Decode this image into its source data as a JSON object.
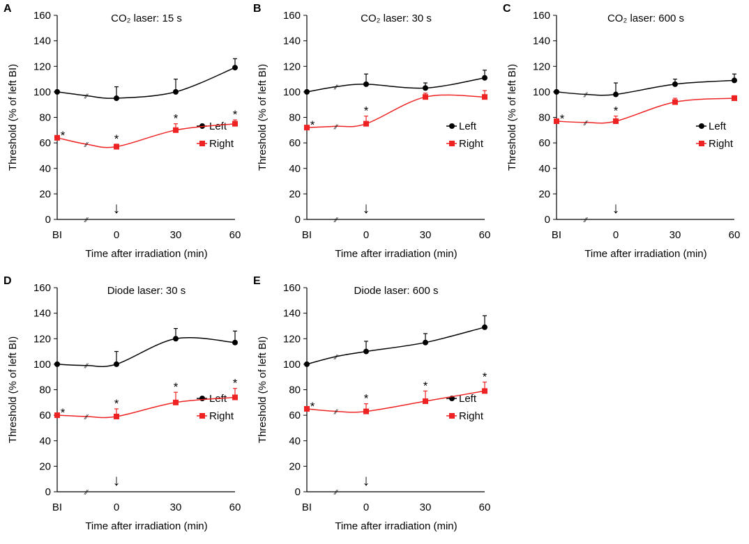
{
  "chart_data": [
    {
      "type": "line",
      "panel_label": "A",
      "title": "CO₂ laser: 15 s",
      "xlabel": "Time after irradiation (min)",
      "ylabel": "Threshold (% of left BI)",
      "categories": [
        "BI",
        "",
        "0",
        "30",
        "60"
      ],
      "ylim": [
        0,
        160
      ],
      "yticks": [
        0,
        20,
        40,
        60,
        80,
        100,
        120,
        140,
        160
      ],
      "arrow_label": "↓",
      "break_mark": "∕∕",
      "significance_symbol": "*",
      "series": [
        {
          "name": "Left",
          "color": "#000000",
          "marker": "circle",
          "values": [
            100,
            97,
            95,
            100,
            119
          ],
          "errors": [
            0,
            0,
            9,
            10,
            7
          ],
          "significant": [
            false,
            false,
            false,
            false,
            false
          ]
        },
        {
          "name": "Right",
          "color": "#ee2222",
          "marker": "square",
          "values": [
            64,
            59,
            57,
            70,
            75
          ],
          "errors": [
            0,
            0,
            2,
            5,
            3
          ],
          "significant": [
            true,
            false,
            true,
            true,
            true
          ]
        }
      ]
    },
    {
      "type": "line",
      "panel_label": "B",
      "title": "CO₂ laser: 30 s",
      "xlabel": "Time after irradiation (min)",
      "ylabel": "Threshold (% of left BI)",
      "categories": [
        "BI",
        "",
        "0",
        "30",
        "60"
      ],
      "ylim": [
        0,
        160
      ],
      "yticks": [
        0,
        20,
        40,
        60,
        80,
        100,
        120,
        140,
        160
      ],
      "arrow_label": "↓",
      "break_mark": "∕∕",
      "significance_symbol": "*",
      "series": [
        {
          "name": "Left",
          "color": "#000000",
          "marker": "circle",
          "values": [
            100,
            104,
            106,
            103,
            111
          ],
          "errors": [
            0,
            0,
            8,
            4,
            6
          ],
          "significant": [
            false,
            false,
            false,
            false,
            false
          ]
        },
        {
          "name": "Right",
          "color": "#ee2222",
          "marker": "square",
          "values": [
            72,
            73,
            75,
            96,
            96
          ],
          "errors": [
            0,
            0,
            6,
            3,
            5
          ],
          "significant": [
            true,
            false,
            true,
            false,
            false
          ]
        }
      ]
    },
    {
      "type": "line",
      "panel_label": "C",
      "title": "CO₂ laser: 600 s",
      "xlabel": "Time after irradiation (min)",
      "ylabel": "Threshold (% of left BI)",
      "categories": [
        "BI",
        "",
        "0",
        "30",
        "60"
      ],
      "ylim": [
        0,
        160
      ],
      "yticks": [
        0,
        20,
        40,
        60,
        80,
        100,
        120,
        140,
        160
      ],
      "arrow_label": "↓",
      "break_mark": "∕∕",
      "significance_symbol": "*",
      "series": [
        {
          "name": "Left",
          "color": "#000000",
          "marker": "circle",
          "values": [
            100,
            98,
            98,
            106,
            109
          ],
          "errors": [
            0,
            0,
            9,
            4,
            5
          ],
          "significant": [
            false,
            false,
            false,
            false,
            false
          ]
        },
        {
          "name": "Right",
          "color": "#ee2222",
          "marker": "square",
          "values": [
            77,
            76,
            77,
            92,
            95
          ],
          "errors": [
            0,
            0,
            4,
            3,
            2
          ],
          "significant": [
            true,
            false,
            true,
            false,
            false
          ]
        }
      ]
    },
    {
      "type": "line",
      "panel_label": "D",
      "title": "Diode laser: 30 s",
      "xlabel": "Time after irradiation (min)",
      "ylabel": "Threshold (% of left BI)",
      "categories": [
        "BI",
        "",
        "0",
        "30",
        "60"
      ],
      "ylim": [
        0,
        160
      ],
      "yticks": [
        0,
        20,
        40,
        60,
        80,
        100,
        120,
        140,
        160
      ],
      "arrow_label": "↓",
      "break_mark": "∕∕",
      "significance_symbol": "*",
      "series": [
        {
          "name": "Left",
          "color": "#000000",
          "marker": "circle",
          "values": [
            100,
            99,
            100,
            120,
            117
          ],
          "errors": [
            0,
            0,
            10,
            8,
            9
          ],
          "significant": [
            false,
            false,
            false,
            false,
            false
          ]
        },
        {
          "name": "Right",
          "color": "#ee2222",
          "marker": "square",
          "values": [
            60,
            59,
            59,
            70,
            74
          ],
          "errors": [
            0,
            0,
            6,
            8,
            7
          ],
          "significant": [
            true,
            false,
            true,
            true,
            true
          ]
        }
      ]
    },
    {
      "type": "line",
      "panel_label": "E",
      "title": "Diode laser: 600 s",
      "xlabel": "Time after irradiation (min)",
      "ylabel": "Threshold (% of left BI)",
      "categories": [
        "BI",
        "",
        "0",
        "30",
        "60"
      ],
      "ylim": [
        0,
        160
      ],
      "yticks": [
        0,
        20,
        40,
        60,
        80,
        100,
        120,
        140,
        160
      ],
      "arrow_label": "↓",
      "break_mark": "∕∕",
      "significance_symbol": "*",
      "series": [
        {
          "name": "Left",
          "color": "#000000",
          "marker": "circle",
          "values": [
            100,
            106,
            110,
            117,
            129
          ],
          "errors": [
            0,
            0,
            8,
            7,
            9
          ],
          "significant": [
            false,
            false,
            false,
            false,
            false
          ]
        },
        {
          "name": "Right",
          "color": "#ee2222",
          "marker": "square",
          "values": [
            65,
            63,
            63,
            71,
            79
          ],
          "errors": [
            0,
            0,
            6,
            8,
            7
          ],
          "significant": [
            true,
            false,
            true,
            true,
            true
          ]
        }
      ]
    }
  ]
}
